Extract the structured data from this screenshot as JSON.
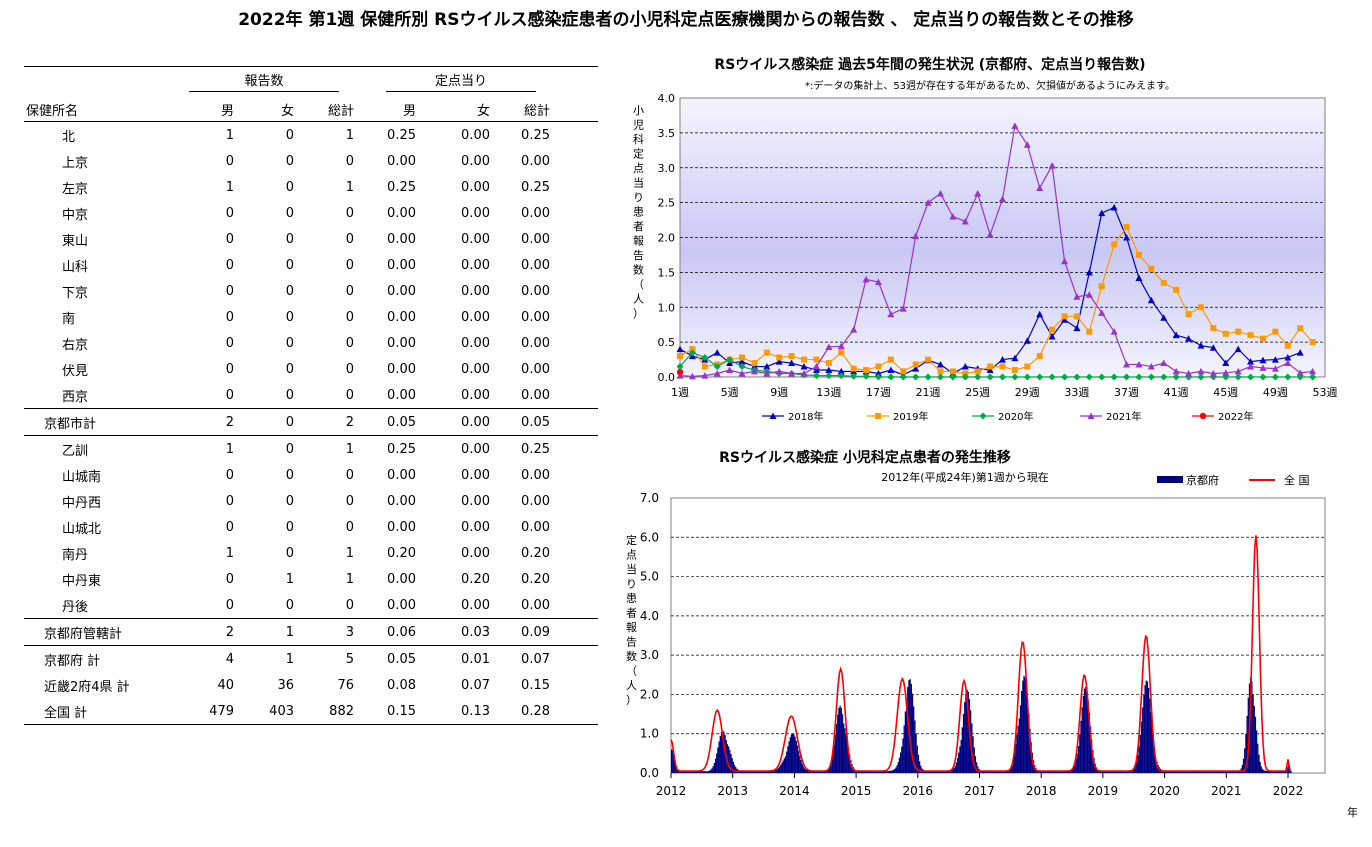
{
  "page": {
    "title": "2022年 第1週 保健所別 RSウイルス感染症患者の小児科定点医療機関からの報告数 、 定点当りの報告数とその推移"
  },
  "table": {
    "group_headers": [
      "報告数",
      "定点当り"
    ],
    "columns": [
      "保健所名",
      "男",
      "女",
      "総計",
      "男",
      "女",
      "総計"
    ],
    "rows": [
      {
        "name": "北",
        "level": "sub",
        "values": [
          "1",
          "0",
          "1",
          "0.25",
          "0.00",
          "0.25"
        ]
      },
      {
        "name": "上京",
        "level": "sub",
        "values": [
          "0",
          "0",
          "0",
          "0.00",
          "0.00",
          "0.00"
        ]
      },
      {
        "name": "左京",
        "level": "sub",
        "values": [
          "1",
          "0",
          "1",
          "0.25",
          "0.00",
          "0.25"
        ]
      },
      {
        "name": "中京",
        "level": "sub",
        "values": [
          "0",
          "0",
          "0",
          "0.00",
          "0.00",
          "0.00"
        ]
      },
      {
        "name": "東山",
        "level": "sub",
        "values": [
          "0",
          "0",
          "0",
          "0.00",
          "0.00",
          "0.00"
        ]
      },
      {
        "name": "山科",
        "level": "sub",
        "values": [
          "0",
          "0",
          "0",
          "0.00",
          "0.00",
          "0.00"
        ]
      },
      {
        "name": "下京",
        "level": "sub",
        "values": [
          "0",
          "0",
          "0",
          "0.00",
          "0.00",
          "0.00"
        ]
      },
      {
        "name": "南",
        "level": "sub",
        "values": [
          "0",
          "0",
          "0",
          "0.00",
          "0.00",
          "0.00"
        ]
      },
      {
        "name": "右京",
        "level": "sub",
        "values": [
          "0",
          "0",
          "0",
          "0.00",
          "0.00",
          "0.00"
        ]
      },
      {
        "name": "伏見",
        "level": "sub",
        "values": [
          "0",
          "0",
          "0",
          "0.00",
          "0.00",
          "0.00"
        ]
      },
      {
        "name": "西京",
        "level": "sub",
        "values": [
          "0",
          "0",
          "0",
          "0.00",
          "0.00",
          "0.00"
        ]
      },
      {
        "name": "京都市計",
        "level": "main",
        "values": [
          "2",
          "0",
          "2",
          "0.05",
          "0.00",
          "0.05"
        ]
      },
      {
        "name": "乙訓",
        "level": "sub",
        "values": [
          "1",
          "0",
          "1",
          "0.25",
          "0.00",
          "0.25"
        ]
      },
      {
        "name": "山城南",
        "level": "sub",
        "values": [
          "0",
          "0",
          "0",
          "0.00",
          "0.00",
          "0.00"
        ]
      },
      {
        "name": "中丹西",
        "level": "sub",
        "values": [
          "0",
          "0",
          "0",
          "0.00",
          "0.00",
          "0.00"
        ]
      },
      {
        "name": "山城北",
        "level": "sub",
        "values": [
          "0",
          "0",
          "0",
          "0.00",
          "0.00",
          "0.00"
        ]
      },
      {
        "name": "南丹",
        "level": "sub",
        "values": [
          "1",
          "0",
          "1",
          "0.20",
          "0.00",
          "0.20"
        ]
      },
      {
        "name": "中丹東",
        "level": "sub",
        "values": [
          "0",
          "1",
          "1",
          "0.00",
          "0.20",
          "0.20"
        ]
      },
      {
        "name": "丹後",
        "level": "sub",
        "values": [
          "0",
          "0",
          "0",
          "0.00",
          "0.00",
          "0.00"
        ]
      },
      {
        "name": "京都府管轄計",
        "level": "main",
        "values": [
          "2",
          "1",
          "3",
          "0.06",
          "0.03",
          "0.09"
        ]
      },
      {
        "name": "京都府 計",
        "level": "main",
        "values": [
          "4",
          "1",
          "5",
          "0.05",
          "0.01",
          "0.07"
        ]
      },
      {
        "name": "近畿2府4県 計",
        "level": "main",
        "values": [
          "40",
          "36",
          "76",
          "0.08",
          "0.07",
          "0.15"
        ]
      },
      {
        "name": "全国 計",
        "level": "main",
        "values": [
          "479",
          "403",
          "882",
          "0.15",
          "0.13",
          "0.28"
        ]
      }
    ]
  },
  "chart_data": [
    {
      "type": "line",
      "title": "RSウイルス感染症 過去5年間の発生状況 (京都府、定点当り報告数)",
      "subtitle": "*:データの集計上、53週が存在する年があるため、欠損値があるようにみえます。",
      "ylabel": "小児科定点当り患者報告数（人）",
      "ylim": [
        0,
        40
      ],
      "yticks": [
        "0.0",
        "0.5",
        "1.0",
        "1.5",
        "2.0",
        "2.5",
        "3.0",
        "3.5",
        "4.0"
      ],
      "xticks": [
        "1週",
        "5週",
        "9週",
        "13週",
        "17週",
        "21週",
        "25週",
        "29週",
        "33週",
        "37週",
        "41週",
        "45週",
        "49週",
        "53週"
      ],
      "xtick_weeks": [
        1,
        5,
        9,
        13,
        17,
        21,
        25,
        29,
        33,
        37,
        41,
        45,
        49,
        53
      ],
      "grid": true,
      "legend_position": "bottom",
      "series": [
        {
          "name": "2018年",
          "color": "#0000cc",
          "marker": "triangle",
          "values": [
            4.0,
            3.0,
            2.5,
            3.5,
            2.0,
            2.2,
            1.5,
            1.5,
            2.2,
            2.0,
            1.5,
            1.0,
            1.0,
            0.8,
            0.8,
            0.8,
            0.5,
            1.0,
            0.3,
            1.2,
            2.4,
            1.8,
            0.5,
            1.5,
            1.2,
            1.0,
            2.5,
            2.7,
            5.2,
            9.0,
            5.8,
            8.2,
            7.0,
            15.0,
            23.5,
            24.3,
            20.0,
            14.2,
            11.0,
            8.5,
            6.0,
            5.5,
            4.5,
            4.2,
            2.0,
            4.0,
            2.2,
            2.4,
            2.5,
            2.8,
            3.5,
            null,
            null
          ]
        },
        {
          "name": "2019年",
          "color": "#ff9900",
          "marker": "square",
          "values": [
            3.0,
            4.0,
            1.5,
            1.8,
            2.5,
            2.8,
            2.0,
            3.5,
            2.8,
            3.0,
            2.5,
            2.5,
            2.0,
            3.5,
            1.2,
            1.0,
            1.5,
            2.5,
            0.8,
            1.8,
            2.5,
            0.8,
            0.8,
            0.5,
            0.8,
            1.5,
            1.5,
            1.0,
            1.5,
            3.0,
            6.8,
            8.7,
            8.7,
            6.5,
            13.0,
            19.0,
            21.5,
            17.5,
            15.5,
            13.5,
            12.5,
            9.0,
            10.0,
            7.0,
            6.2,
            6.5,
            6.0,
            5.5,
            6.5,
            4.5,
            7.0,
            5.0,
            null
          ]
        },
        {
          "name": "2020年",
          "color": "#00aa44",
          "marker": "diamond",
          "values": [
            1.5,
            3.5,
            2.8,
            1.5,
            2.5,
            1.5,
            1.0,
            0.8,
            0.5,
            0.5,
            0.3,
            0.2,
            0.2,
            0.2,
            0.1,
            0.1,
            0,
            0,
            0,
            0,
            0,
            0,
            0,
            0,
            0,
            0,
            0,
            0,
            0,
            0,
            0,
            0,
            0,
            0,
            0,
            0,
            0,
            0,
            0,
            0,
            0,
            0,
            0,
            0,
            0,
            0,
            0,
            0,
            0,
            0,
            0,
            0,
            null
          ]
        },
        {
          "name": "2021年",
          "color": "#9933cc",
          "marker": "triangle",
          "values": [
            0.2,
            0.1,
            0.2,
            0.5,
            1.0,
            0.5,
            0.8,
            0.5,
            0.8,
            0.5,
            0.5,
            1.5,
            4.3,
            4.4,
            6.8,
            14.0,
            13.6,
            9.0,
            9.8,
            20.2,
            25.0,
            26.3,
            23.0,
            22.3,
            26.3,
            20.4,
            25.5,
            36.0,
            33.3,
            27.1,
            30.3,
            16.6,
            11.5,
            11.8,
            9.2,
            6.5,
            1.8,
            1.8,
            1.5,
            2.0,
            0.8,
            0.5,
            0.8,
            0.5,
            0.6,
            0.8,
            1.5,
            1.3,
            1.2,
            2.0,
            0.6,
            0.8,
            null
          ]
        },
        {
          "name": "2022年",
          "color": "#ff0000",
          "marker": "circle",
          "values": [
            0.7
          ]
        }
      ]
    },
    {
      "type": "area",
      "title": "RSウイルス感染症 小児科定点患者の発生推移",
      "subtitle": "2012年(平成24年)第1週から現在",
      "ylabel": "定点当り患者報告数（人）",
      "ylim": [
        0,
        7
      ],
      "yticks": [
        "0.0",
        "1.0",
        "2.0",
        "3.0",
        "4.0",
        "5.0",
        "6.0",
        "7.0"
      ],
      "xticks": [
        "2012",
        "2013",
        "2014",
        "2015",
        "2016",
        "2017",
        "2018",
        "2019",
        "2020",
        "2021",
        "2022"
      ],
      "xlabel": "年",
      "grid": true,
      "legend_position": "top-right",
      "series": [
        {
          "name": "京都府",
          "color": "#000080",
          "kind": "bar",
          "peaks": [
            [
              2012.0,
              0.6,
              0.15
            ],
            [
              2012.85,
              1.1,
              0.3
            ],
            [
              2013.95,
              0.9,
              0.35
            ],
            [
              2014.75,
              1.8,
              0.28
            ],
            [
              2015.85,
              2.2,
              0.3
            ],
            [
              2016.78,
              2.0,
              0.28
            ],
            [
              2017.7,
              2.5,
              0.28
            ],
            [
              2018.7,
              2.0,
              0.28
            ],
            [
              2019.7,
              2.1,
              0.3
            ],
            [
              2021.4,
              2.7,
              0.22
            ],
            [
              2022.0,
              0.25,
              0.05
            ]
          ]
        },
        {
          "name": "全 国",
          "color": "#ff0000",
          "kind": "line",
          "peaks": [
            [
              2012.0,
              0.8,
              0.15
            ],
            [
              2012.75,
              1.55,
              0.3
            ],
            [
              2013.95,
              1.4,
              0.35
            ],
            [
              2014.75,
              2.6,
              0.25
            ],
            [
              2015.75,
              2.35,
              0.3
            ],
            [
              2016.75,
              2.3,
              0.25
            ],
            [
              2017.7,
              3.3,
              0.25
            ],
            [
              2018.7,
              2.45,
              0.25
            ],
            [
              2019.7,
              3.45,
              0.25
            ],
            [
              2021.48,
              6.0,
              0.2
            ],
            [
              2022.0,
              0.3,
              0.05
            ]
          ]
        }
      ]
    }
  ]
}
